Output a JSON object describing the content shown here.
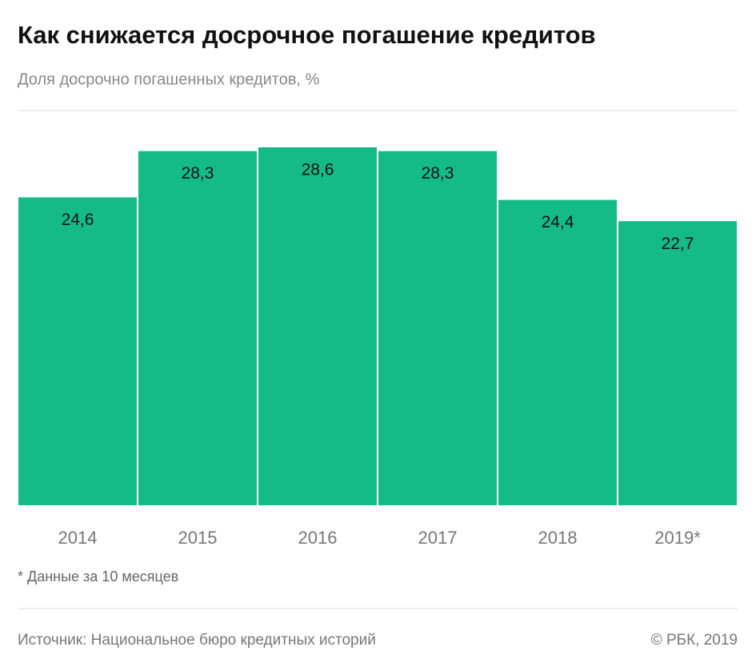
{
  "chart_data": {
    "type": "bar",
    "title": "Как снижается досрочное погашение кредитов",
    "subtitle": "Доля досрочно погашенных кредитов, %",
    "categories": [
      "2014",
      "2015",
      "2016",
      "2017",
      "2018",
      "2019*"
    ],
    "values": [
      24.6,
      28.3,
      28.6,
      28.3,
      24.4,
      22.7
    ],
    "value_labels": [
      "24,6",
      "28,3",
      "28,6",
      "28,3",
      "24,4",
      "22,7"
    ],
    "color": "#14bb86",
    "note": "* Данные за 10 месяцев",
    "source": "Источник: Национальное бюро кредитных историй",
    "copyright": "© РБК, 2019"
  }
}
